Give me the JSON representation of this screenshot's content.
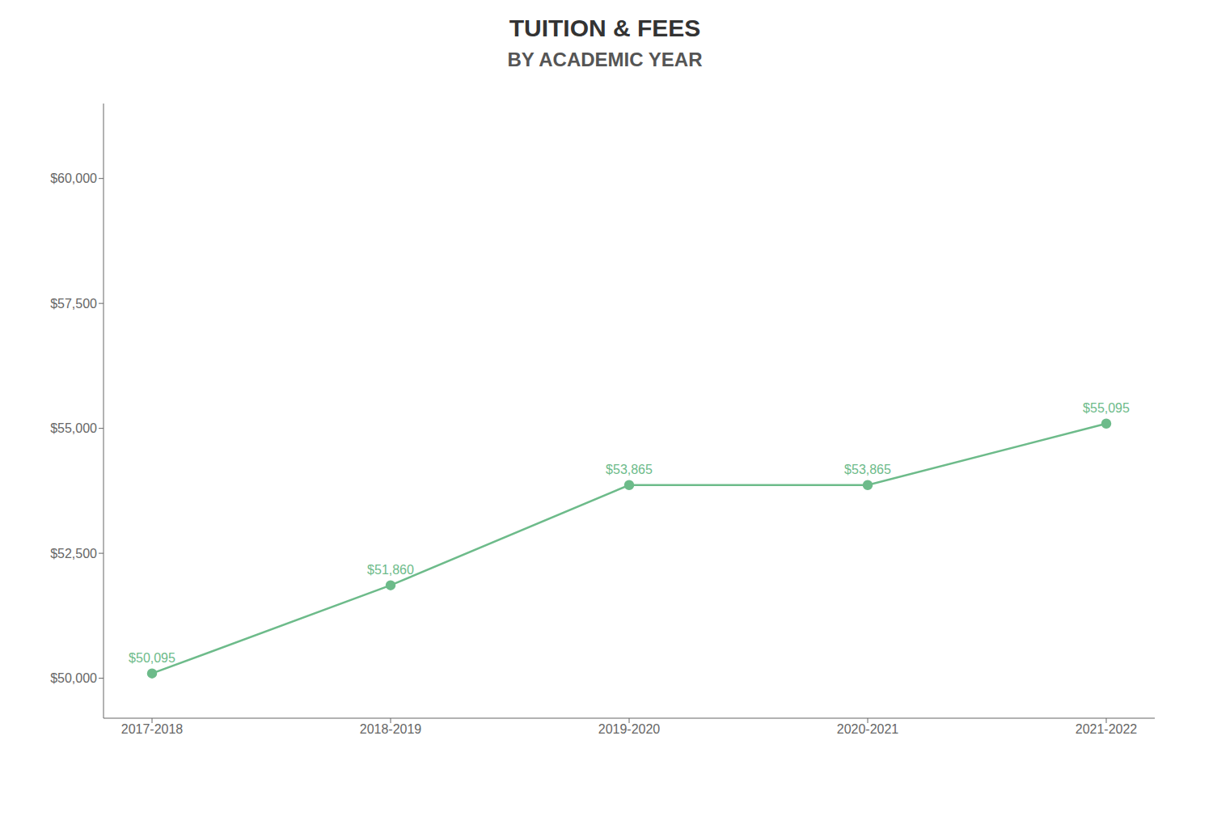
{
  "chart_data": {
    "type": "line",
    "title": "TUITION & FEES",
    "subtitle": "BY ACADEMIC YEAR",
    "categories": [
      "2017-2018",
      "2018-2019",
      "2019-2020",
      "2020-2021",
      "2021-2022"
    ],
    "values": [
      50095,
      51860,
      53865,
      53865,
      55095
    ],
    "value_labels": [
      "$50,095",
      "$51,860",
      "$53,865",
      "$53,865",
      "$55,095"
    ],
    "color": "#6dbb8a",
    "ylim": [
      49200,
      61500
    ],
    "yticks": [
      {
        "value": 50000,
        "label": "$50,000"
      },
      {
        "value": 52500,
        "label": "$52,500"
      },
      {
        "value": 55000,
        "label": "$55,000"
      },
      {
        "value": 57500,
        "label": "$57,500"
      },
      {
        "value": 60000,
        "label": "$60,000"
      }
    ],
    "grid": false,
    "data_labels": true,
    "marker": "circle"
  }
}
